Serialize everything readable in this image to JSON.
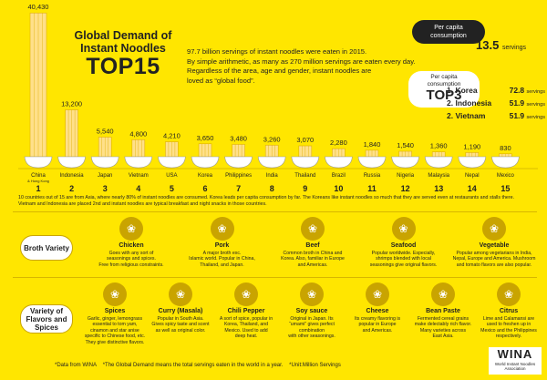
{
  "header": {
    "title_line1": "Global Demand of",
    "title_line2": "Instant Noodles",
    "title_big": "TOP15",
    "intro_lines": [
      "97.7 billion servings of instant noodles were eaten in 2015.",
      "By simple arithmetic, as many as 270 million servings are eaten every day.",
      "Regardless of the area, age and gender, instant noodles are",
      "loved as “global food”."
    ]
  },
  "per_capita": {
    "label_line1": "Per capita",
    "label_line2": "consumption",
    "value": "13.5",
    "unit": "servings"
  },
  "top3": {
    "label_line1": "Per capita",
    "label_line2": "consumption",
    "title": "TOP3",
    "items": [
      {
        "rank": "1.",
        "country": "Korea",
        "value": "72.8",
        "unit": "servings"
      },
      {
        "rank": "2.",
        "country": "Indonesia",
        "value": "51.9",
        "unit": "servings"
      },
      {
        "rank": "2.",
        "country": "Vietnam",
        "value": "51.9",
        "unit": "servings"
      }
    ]
  },
  "chart_data": {
    "type": "bar",
    "title": "Global Demand of Instant Noodles TOP15",
    "categories": [
      "China",
      "Indonesia",
      "Japan",
      "Vietnam",
      "USA",
      "Korea",
      "Philippines",
      "India",
      "Thailand",
      "Brazil",
      "Russia",
      "Nigeria",
      "Malaysia",
      "Nepal",
      "Mexico"
    ],
    "category_sublabels": [
      "& Hong Kong",
      "",
      "",
      "",
      "",
      "",
      "",
      "",
      "",
      "",
      "",
      "",
      "",
      "",
      ""
    ],
    "ranks": [
      "1",
      "2",
      "3",
      "4",
      "5",
      "6",
      "7",
      "8",
      "9",
      "10",
      "11",
      "12",
      "13",
      "14",
      "15"
    ],
    "values": [
      40430,
      13200,
      5540,
      4800,
      4210,
      3650,
      3480,
      3260,
      3070,
      2280,
      1840,
      1540,
      1360,
      1190,
      830
    ],
    "value_labels": [
      "40,430",
      "13,200",
      "5,540",
      "4,800",
      "4,210",
      "3,650",
      "3,480",
      "3,260",
      "3,070",
      "2,280",
      "1,840",
      "1,540",
      "1,360",
      "1,190",
      "830"
    ],
    "ylim": [
      0,
      41000
    ],
    "colors": {
      "noodle": "#ffe08a",
      "noodle_stroke": "#e0b000",
      "bowl": "#ffffff",
      "bowl_stroke": "#999999"
    }
  },
  "note_lines": [
    "10 countries out of 15 are from Asia, where nearly 80% of instant noodles are consumed. Korea leads per capita consumption by far. The Koreans like instant noodles so much that they are served even at restaurants and stalls there.",
    "Vietnam and Indonesia are placed 2nd and instant noodles are typical breakfast and night snacks in those countries."
  ],
  "broth": {
    "label": "Broth Variety",
    "items": [
      {
        "name": "Chicken",
        "icon": "chicken-icon",
        "glyph": "❀",
        "lines": [
          "Goes with any sort of",
          "seasonings and spices.",
          "Free from religious constraints."
        ]
      },
      {
        "name": "Pork",
        "icon": "pork-icon",
        "glyph": "❀",
        "lines": [
          "A major broth exc.",
          "Islamic world. Popular in China,",
          "Thailand, and Japan."
        ]
      },
      {
        "name": "Beef",
        "icon": "beef-icon",
        "glyph": "❀",
        "lines": [
          "Common broth in China and",
          "Korea. Also, familiar in Europe",
          "and Americas."
        ]
      },
      {
        "name": "Seafood",
        "icon": "seafood-icon",
        "glyph": "❀",
        "lines": [
          "Popular worldwide. Especially,",
          "shrimps blended with local",
          "seasonings give original flavors."
        ]
      },
      {
        "name": "Vegetable",
        "icon": "vegetable-icon",
        "glyph": "❀",
        "lines": [
          "Popular among vegetarians in India,",
          "Nepal, Europe and America. Mushroom",
          "and tomato flavors are also popular."
        ]
      }
    ]
  },
  "spices": {
    "label_line1": "Variety of",
    "label_line2": "Flavors and Spices",
    "items": [
      {
        "name": "Spices",
        "icon": "spices-icon",
        "glyph": "❀",
        "lines": [
          "Garlic, ginger, lemongrass",
          "essential to tom yam,",
          "cinamon and star anise",
          "specific to Chinese food, etc.",
          "They give distinctive flavors."
        ]
      },
      {
        "name": "Curry (Masala)",
        "icon": "curry-icon",
        "glyph": "❀",
        "lines": [
          "Popular in South Asia.",
          "Gives spicy taste and scent",
          "as well as original color."
        ]
      },
      {
        "name": "Chili Pepper",
        "icon": "chili-pepper-icon",
        "glyph": "❀",
        "lines": [
          "A sort of spice, popular in",
          "Korea, Thailand, and",
          "Mexico. Used to add",
          "deep heat."
        ]
      },
      {
        "name": "Soy sauce",
        "icon": "soy-sauce-icon",
        "glyph": "❀",
        "lines": [
          "Original in Japan.  Its",
          "“umami” gives perfect",
          "combination",
          "with other seasonings."
        ]
      },
      {
        "name": "Cheese",
        "icon": "cheese-icon",
        "glyph": "❀",
        "lines": [
          "Its creamy flavoring is",
          "popular in Europe",
          "and Americas."
        ]
      },
      {
        "name": "Bean Paste",
        "icon": "bean-paste-icon",
        "glyph": "❀",
        "lines": [
          "Fermented cereal grains",
          "make delectably rich flavor.",
          "Many varieties across",
          "East Asia."
        ]
      },
      {
        "name": "Citrus",
        "icon": "citrus-icon",
        "glyph": "❀",
        "lines": [
          "Lime and Calamansi are",
          "used to freshen up in",
          "Mexico and the Philippines",
          "respectively."
        ]
      }
    ]
  },
  "footer": {
    "source": "*Data from WINA",
    "definition": "*The Global Demand means the total servings eaten in the world in a year.",
    "unit": "*Unit:Million Servings"
  },
  "wina": {
    "logo": "WINA",
    "sub_line1": "World Instant Noodles",
    "sub_line2": "Association"
  }
}
